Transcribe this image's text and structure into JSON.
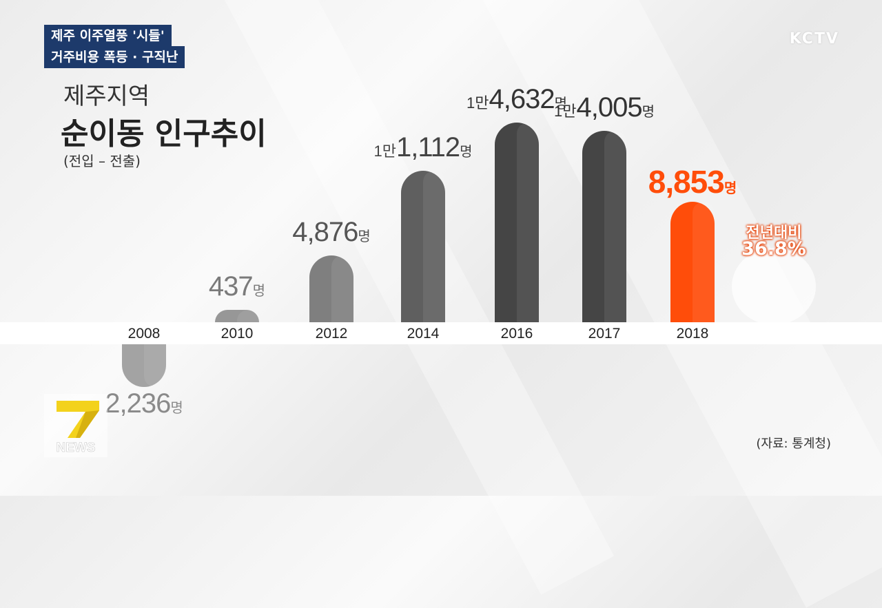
{
  "header": {
    "caption_line1": "제주 이주열풍 '시들'",
    "caption_line2": "거주비용 폭등 · 구직난",
    "broadcaster": "KCTV"
  },
  "chart_title": {
    "line1": "제주지역",
    "line2": "순이동 인구추이",
    "subtitle": "(전입 – 전출)"
  },
  "chart_data": {
    "type": "bar",
    "categories": [
      "2008",
      "2010",
      "2012",
      "2014",
      "2016",
      "2017",
      "2018"
    ],
    "values": [
      -2236,
      437,
      4876,
      11112,
      14632,
      14005,
      8853
    ],
    "labels": [
      {
        "man": "",
        "num": "2,236",
        "unit": "명"
      },
      {
        "man": "",
        "num": "437",
        "unit": "명"
      },
      {
        "man": "",
        "num": "4,876",
        "unit": "명"
      },
      {
        "man": "1만",
        "num": "1,112",
        "unit": "명"
      },
      {
        "man": "1만",
        "num": "4,632",
        "unit": "명"
      },
      {
        "man": "1만",
        "num": "4,005",
        "unit": "명"
      },
      {
        "man": "",
        "num": "8,853",
        "unit": "명"
      }
    ],
    "colors": [
      "#a3a3a3",
      "#979797",
      "#7f7f7f",
      "#5f5f5f",
      "#454545",
      "#454545",
      "#ff4d0a"
    ],
    "label_colors": [
      "#8a8a8a",
      "#7a7a7a",
      "#555555",
      "#444444",
      "#333333",
      "#333333",
      "#ff4d0a"
    ],
    "highlight": {
      "line1": "전년대비",
      "line2": "36.8%",
      "direction": "down",
      "color": "#ff4d0a"
    },
    "source": "(자료: 통계청)"
  },
  "logo": {
    "text": "NEWS",
    "numeral": "7"
  }
}
